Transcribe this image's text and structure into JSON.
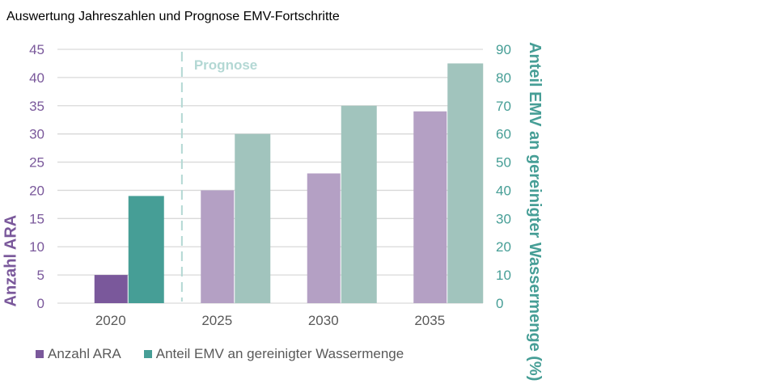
{
  "chart_data": {
    "type": "bar",
    "title": "Auswertung Jahreszahlen und Prognose EMV-Fortschritte",
    "categories": [
      "2020",
      "2025",
      "2030",
      "2035"
    ],
    "series": [
      {
        "name": "Anzahl ARA",
        "axis": "left",
        "values": [
          5,
          20,
          23,
          34
        ],
        "color": "#7a589b",
        "forecast_color": "#b4a0c4"
      },
      {
        "name": "Anteil EMV an gereinigter Wassermenge",
        "axis": "right",
        "values": [
          38,
          60,
          70,
          85
        ],
        "color": "#469e96",
        "forecast_color": "#a1c4bd"
      }
    ],
    "ylabel_left": "Anzahl ARA",
    "ylabel_right": "Anteil EMV an gereinigter Wassermenge (%)",
    "ylim_left": [
      0,
      45
    ],
    "yticks_left": [
      "0",
      "5",
      "10",
      "15",
      "20",
      "25",
      "30",
      "35",
      "40",
      "45"
    ],
    "ylim_right": [
      0,
      90
    ],
    "yticks_right": [
      "0",
      "10",
      "20",
      "30",
      "40",
      "50",
      "60",
      "70",
      "80",
      "90"
    ],
    "annotation": "Prognose",
    "annotation_color": "#b3d8d4",
    "forecast_start_after": "2020",
    "grid": true,
    "legend_position": "bottom-left"
  }
}
